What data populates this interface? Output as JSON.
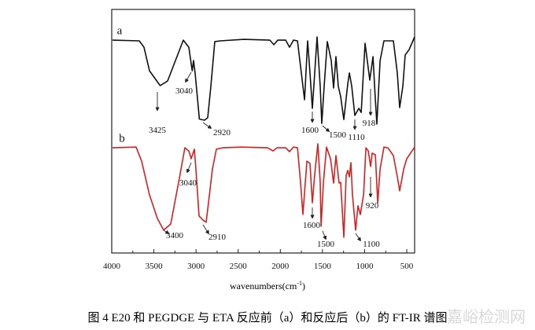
{
  "chart_data": {
    "type": "line",
    "title": "",
    "xlabel": "wavenumbers(cm",
    "xlabel_sup": "-1",
    "xlabel_end": ")",
    "ylabel": "",
    "xlim": [
      4000,
      407
    ],
    "ylim": [
      0,
      100
    ],
    "x_reversed": true,
    "grid": false,
    "y_ticks_shown": false,
    "xticks": [
      4000,
      3500,
      3000,
      2500,
      2000,
      1500,
      1000,
      500
    ],
    "xtick_labels": [
      "4000",
      "3500",
      "3000",
      "2500",
      "2000",
      "1500",
      "1000",
      "500"
    ],
    "series": [
      {
        "name": "a",
        "color": "#111111",
        "points": [
          [
            3991,
            87.4
          ],
          [
            3673,
            87.1
          ],
          [
            3617,
            84.5
          ],
          [
            3552,
            74.8
          ],
          [
            3425,
            68.7
          ],
          [
            3337,
            70.6
          ],
          [
            3244,
            79.0
          ],
          [
            3151,
            87.4
          ],
          [
            3085,
            84.5
          ],
          [
            3045,
            74.8
          ],
          [
            3029,
            79.0
          ],
          [
            3011,
            73.9
          ],
          [
            2960,
            55.0
          ],
          [
            2900,
            54.5
          ],
          [
            2861,
            55.5
          ],
          [
            2824,
            68.4
          ],
          [
            2777,
            86.8
          ],
          [
            2712,
            87.1
          ],
          [
            2432,
            87.7
          ],
          [
            2124,
            87.4
          ],
          [
            2077,
            85.5
          ],
          [
            2031,
            87.4
          ],
          [
            1937,
            87.4
          ],
          [
            1891,
            84.5
          ],
          [
            1844,
            87.4
          ],
          [
            1797,
            87.1
          ],
          [
            1751,
            73.9
          ],
          [
            1713,
            62.9
          ],
          [
            1676,
            87.1
          ],
          [
            1648,
            73.9
          ],
          [
            1620,
            59.4
          ],
          [
            1592,
            73.9
          ],
          [
            1564,
            88.7
          ],
          [
            1527,
            68.4
          ],
          [
            1508,
            53.2
          ],
          [
            1480,
            68.4
          ],
          [
            1443,
            86.8
          ],
          [
            1396,
            79.0
          ],
          [
            1368,
            67.7
          ],
          [
            1340,
            80.6
          ],
          [
            1312,
            68.4
          ],
          [
            1284,
            64.2
          ],
          [
            1247,
            54.8
          ],
          [
            1200,
            69.4
          ],
          [
            1181,
            73.9
          ],
          [
            1153,
            68.4
          ],
          [
            1116,
            56.5
          ],
          [
            1069,
            59.4
          ],
          [
            1041,
            57.7
          ],
          [
            995,
            86.1
          ],
          [
            939,
            71.0
          ],
          [
            901,
            80.6
          ],
          [
            873,
            62.9
          ],
          [
            855,
            52.9
          ],
          [
            817,
            79.0
          ],
          [
            771,
            87.1
          ],
          [
            659,
            87.1
          ],
          [
            612,
            73.9
          ],
          [
            584,
            59.7
          ],
          [
            547,
            68.4
          ],
          [
            519,
            81.3
          ],
          [
            472,
            83.5
          ],
          [
            407,
            88.7
          ]
        ]
      },
      {
        "name": "b",
        "color": "#d42020",
        "points": [
          [
            3991,
            43.2
          ],
          [
            3711,
            43.5
          ],
          [
            3645,
            37.7
          ],
          [
            3552,
            23.9
          ],
          [
            3459,
            14.2
          ],
          [
            3384,
            9.4
          ],
          [
            3300,
            11.9
          ],
          [
            3207,
            29.0
          ],
          [
            3132,
            43.2
          ],
          [
            3085,
            41.9
          ],
          [
            3057,
            38.7
          ],
          [
            3020,
            42.6
          ],
          [
            3001,
            34.5
          ],
          [
            2964,
            15.2
          ],
          [
            2917,
            13.5
          ],
          [
            2880,
            12.6
          ],
          [
            2852,
            20.6
          ],
          [
            2805,
            34.5
          ],
          [
            2759,
            42.6
          ],
          [
            2684,
            43.2
          ],
          [
            2460,
            43.5
          ],
          [
            2152,
            43.2
          ],
          [
            2087,
            41.9
          ],
          [
            2040,
            43.2
          ],
          [
            1937,
            43.2
          ],
          [
            1891,
            41.6
          ],
          [
            1844,
            43.5
          ],
          [
            1797,
            43.2
          ],
          [
            1760,
            29.0
          ],
          [
            1732,
            15.8
          ],
          [
            1685,
            37.7
          ],
          [
            1648,
            36.8
          ],
          [
            1620,
            20.6
          ],
          [
            1592,
            32.3
          ],
          [
            1555,
            44.8
          ],
          [
            1527,
            29.0
          ],
          [
            1517,
            11.0
          ],
          [
            1489,
            29.0
          ],
          [
            1452,
            43.5
          ],
          [
            1405,
            38.7
          ],
          [
            1368,
            28.7
          ],
          [
            1340,
            40.0
          ],
          [
            1303,
            28.7
          ],
          [
            1284,
            29.0
          ],
          [
            1247,
            6.5
          ],
          [
            1219,
            31.9
          ],
          [
            1200,
            33.9
          ],
          [
            1181,
            31.3
          ],
          [
            1163,
            37.1
          ],
          [
            1144,
            23.9
          ],
          [
            1107,
            9.4
          ],
          [
            1079,
            19.4
          ],
          [
            1051,
            15.8
          ],
          [
            1013,
            23.9
          ],
          [
            985,
            43.2
          ],
          [
            957,
            41.9
          ],
          [
            929,
            35.5
          ],
          [
            911,
            41.0
          ],
          [
            873,
            40.3
          ],
          [
            845,
            20.6
          ],
          [
            817,
            34.5
          ],
          [
            771,
            43.5
          ],
          [
            724,
            43.2
          ],
          [
            659,
            40.0
          ],
          [
            612,
            31.3
          ],
          [
            584,
            25.5
          ],
          [
            537,
            34.5
          ],
          [
            500,
            38.7
          ],
          [
            407,
            43.5
          ]
        ]
      }
    ],
    "annotations": {
      "a": [
        "3425",
        "3040",
        "2920",
        "1600",
        "1500",
        "1110",
        "918"
      ],
      "b": [
        "3400",
        "3040",
        "2910",
        "1600",
        "1500",
        "1100",
        "920"
      ]
    }
  },
  "caption": "图 4 E20 和 PEGDGE 与 ETA 反应前（a）和反应后（b）的 FT-IR 谱图",
  "watermark": "嘉峪检测网"
}
